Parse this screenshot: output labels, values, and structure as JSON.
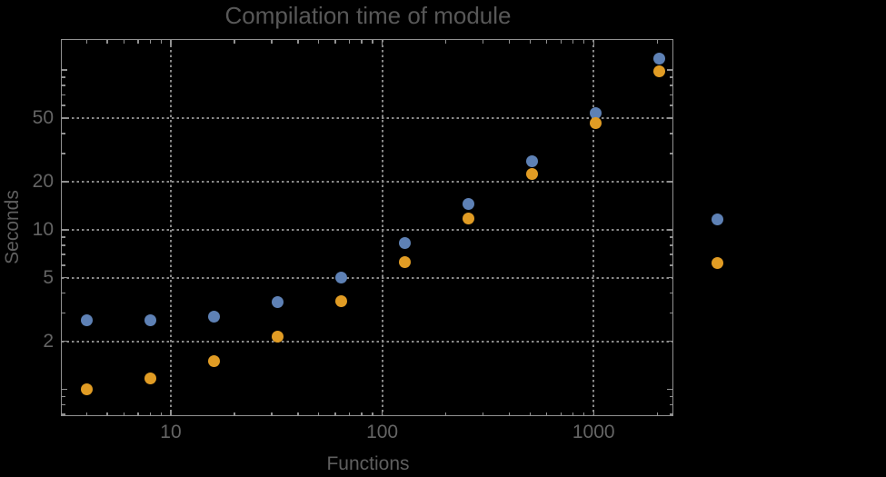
{
  "chart_data": {
    "type": "scatter",
    "title": "Compilation time of module",
    "xlabel": "Functions",
    "ylabel": "Seconds",
    "x_scale": "log",
    "y_scale": "log",
    "xlim": [
      3.05,
      2360
    ],
    "ylim": [
      0.69,
      154
    ],
    "x": [
      4,
      8,
      16,
      32,
      64,
      128,
      256,
      512,
      1024,
      2048
    ],
    "series": [
      {
        "name": "",
        "color": "#5e81b5",
        "values": [
          2.7,
          2.7,
          2.85,
          3.5,
          5.0,
          8.3,
          14.5,
          26.7,
          54,
          118
        ]
      },
      {
        "name": "",
        "color": "#e19c24",
        "values": [
          1.0,
          1.17,
          1.5,
          2.15,
          3.55,
          6.3,
          11.7,
          22.3,
          46.5,
          98
        ]
      }
    ],
    "x_tick_labels": [
      {
        "value": 10,
        "label": "10"
      },
      {
        "value": 100,
        "label": "100"
      },
      {
        "value": 1000,
        "label": "1000"
      }
    ],
    "y_tick_labels": [
      {
        "value": 2,
        "label": "2"
      },
      {
        "value": 5,
        "label": "5"
      },
      {
        "value": 10,
        "label": "10"
      },
      {
        "value": 20,
        "label": "20"
      },
      {
        "value": 50,
        "label": "50"
      }
    ],
    "gridlines": {
      "x": [
        10,
        100,
        1000
      ],
      "y": [
        2,
        5,
        10,
        20,
        50
      ],
      "style": "dotted"
    },
    "legend": {
      "position": "outside-right",
      "labels_visible": false,
      "entries": [
        {
          "label": "",
          "color": "#5e81b5"
        },
        {
          "label": "",
          "color": "#e19c24"
        }
      ]
    }
  },
  "colors": {
    "background": "#000000",
    "frame": "#919191",
    "grid": "#8a8a8a",
    "title": "#585858",
    "axis_label": "#5f5f5f",
    "tick_label": "#646464",
    "series1": "#5e81b5",
    "series2": "#e19c24"
  }
}
